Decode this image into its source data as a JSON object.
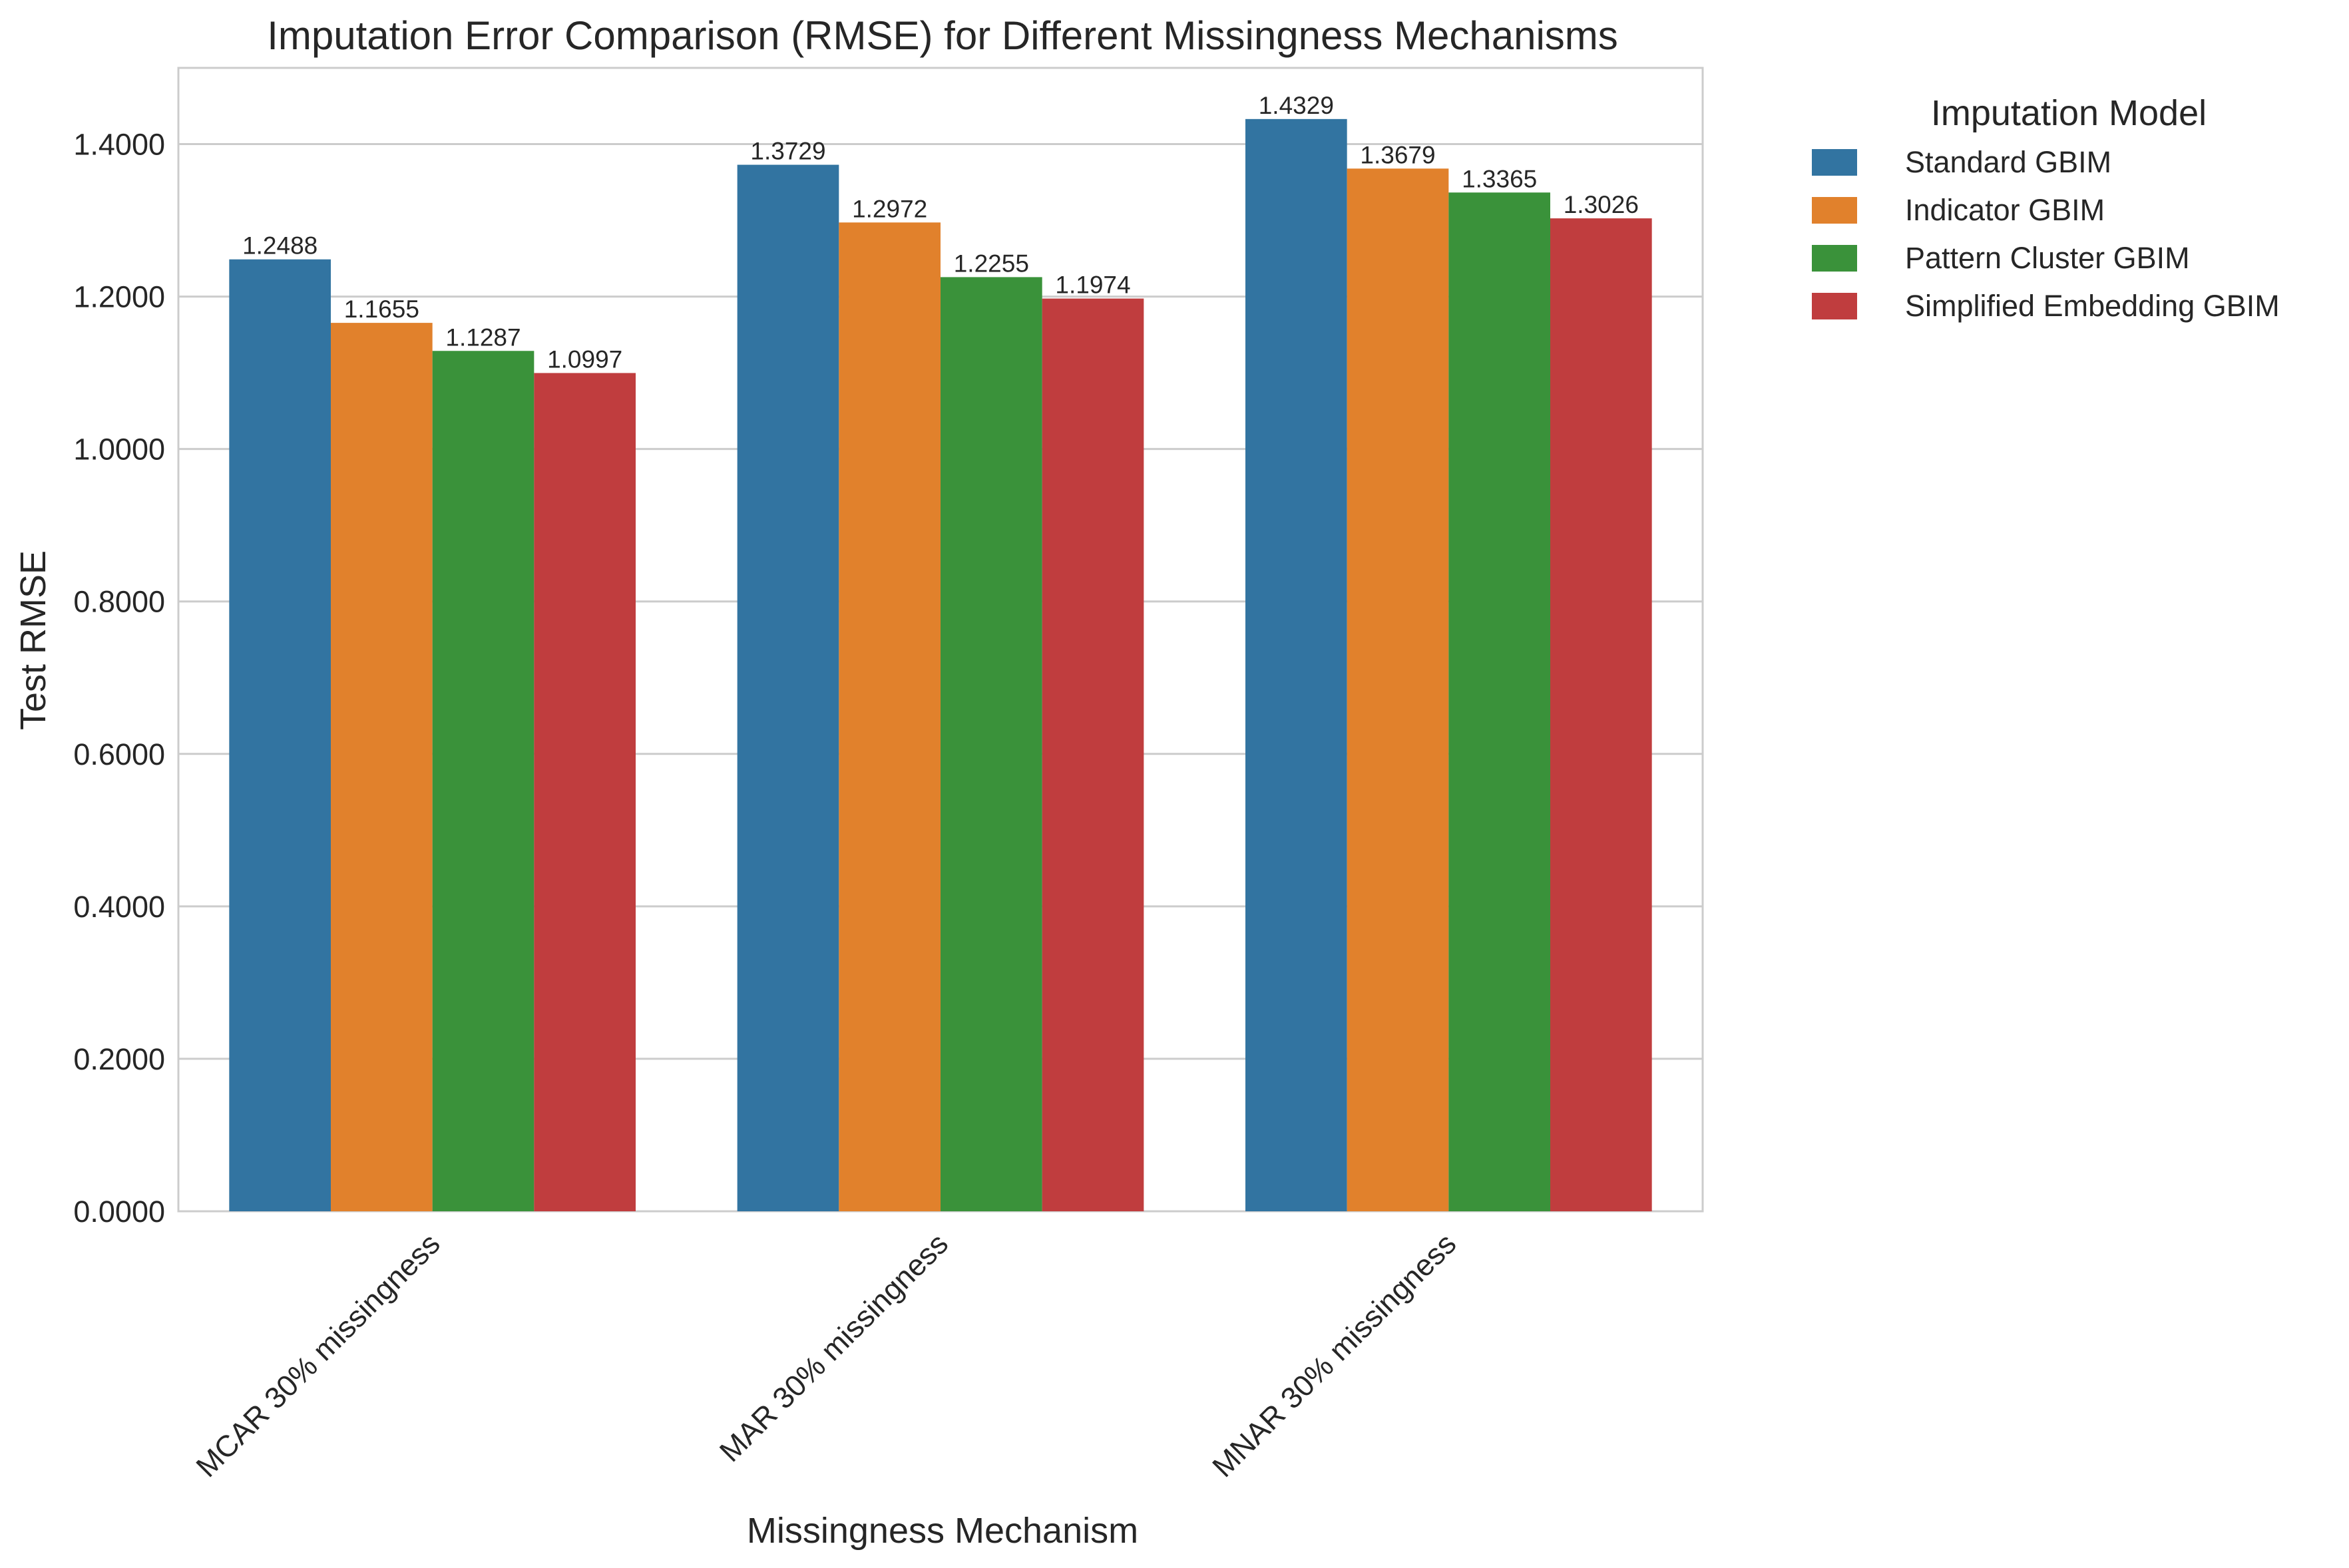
{
  "chart_data": {
    "type": "bar",
    "title": "Imputation Error Comparison (RMSE) for Different Missingness Mechanisms",
    "xlabel": "Missingness Mechanism",
    "ylabel": "Test RMSE",
    "ylim": [
      0,
      1.5
    ],
    "yticks": [
      "0.0000",
      "0.2000",
      "0.4000",
      "0.6000",
      "0.8000",
      "1.0000",
      "1.2000",
      "1.4000"
    ],
    "categories": [
      "MCAR 30% missingness",
      "MAR 30% missingness",
      "MNAR 30% missingness"
    ],
    "grid": true,
    "legend": {
      "title": "Imputation Model",
      "placement": "outside right"
    },
    "series": [
      {
        "name": "Standard GBIM",
        "color": "#3274a1",
        "values": [
          1.2488,
          1.3729,
          1.4329
        ],
        "labels": [
          "1.2488",
          "1.3729",
          "1.4329"
        ]
      },
      {
        "name": "Indicator GBIM",
        "color": "#e1812c",
        "values": [
          1.1655,
          1.2972,
          1.3679
        ],
        "labels": [
          "1.1655",
          "1.2972",
          "1.3679"
        ]
      },
      {
        "name": "Pattern Cluster GBIM",
        "color": "#3a923a",
        "values": [
          1.1287,
          1.2255,
          1.3365
        ],
        "labels": [
          "1.1287",
          "1.2255",
          "1.3365"
        ]
      },
      {
        "name": "Simplified Embedding GBIM",
        "color": "#c03d3e",
        "values": [
          1.0997,
          1.1974,
          1.3026
        ],
        "labels": [
          "1.0997",
          "1.1974",
          "1.3026"
        ]
      }
    ]
  }
}
